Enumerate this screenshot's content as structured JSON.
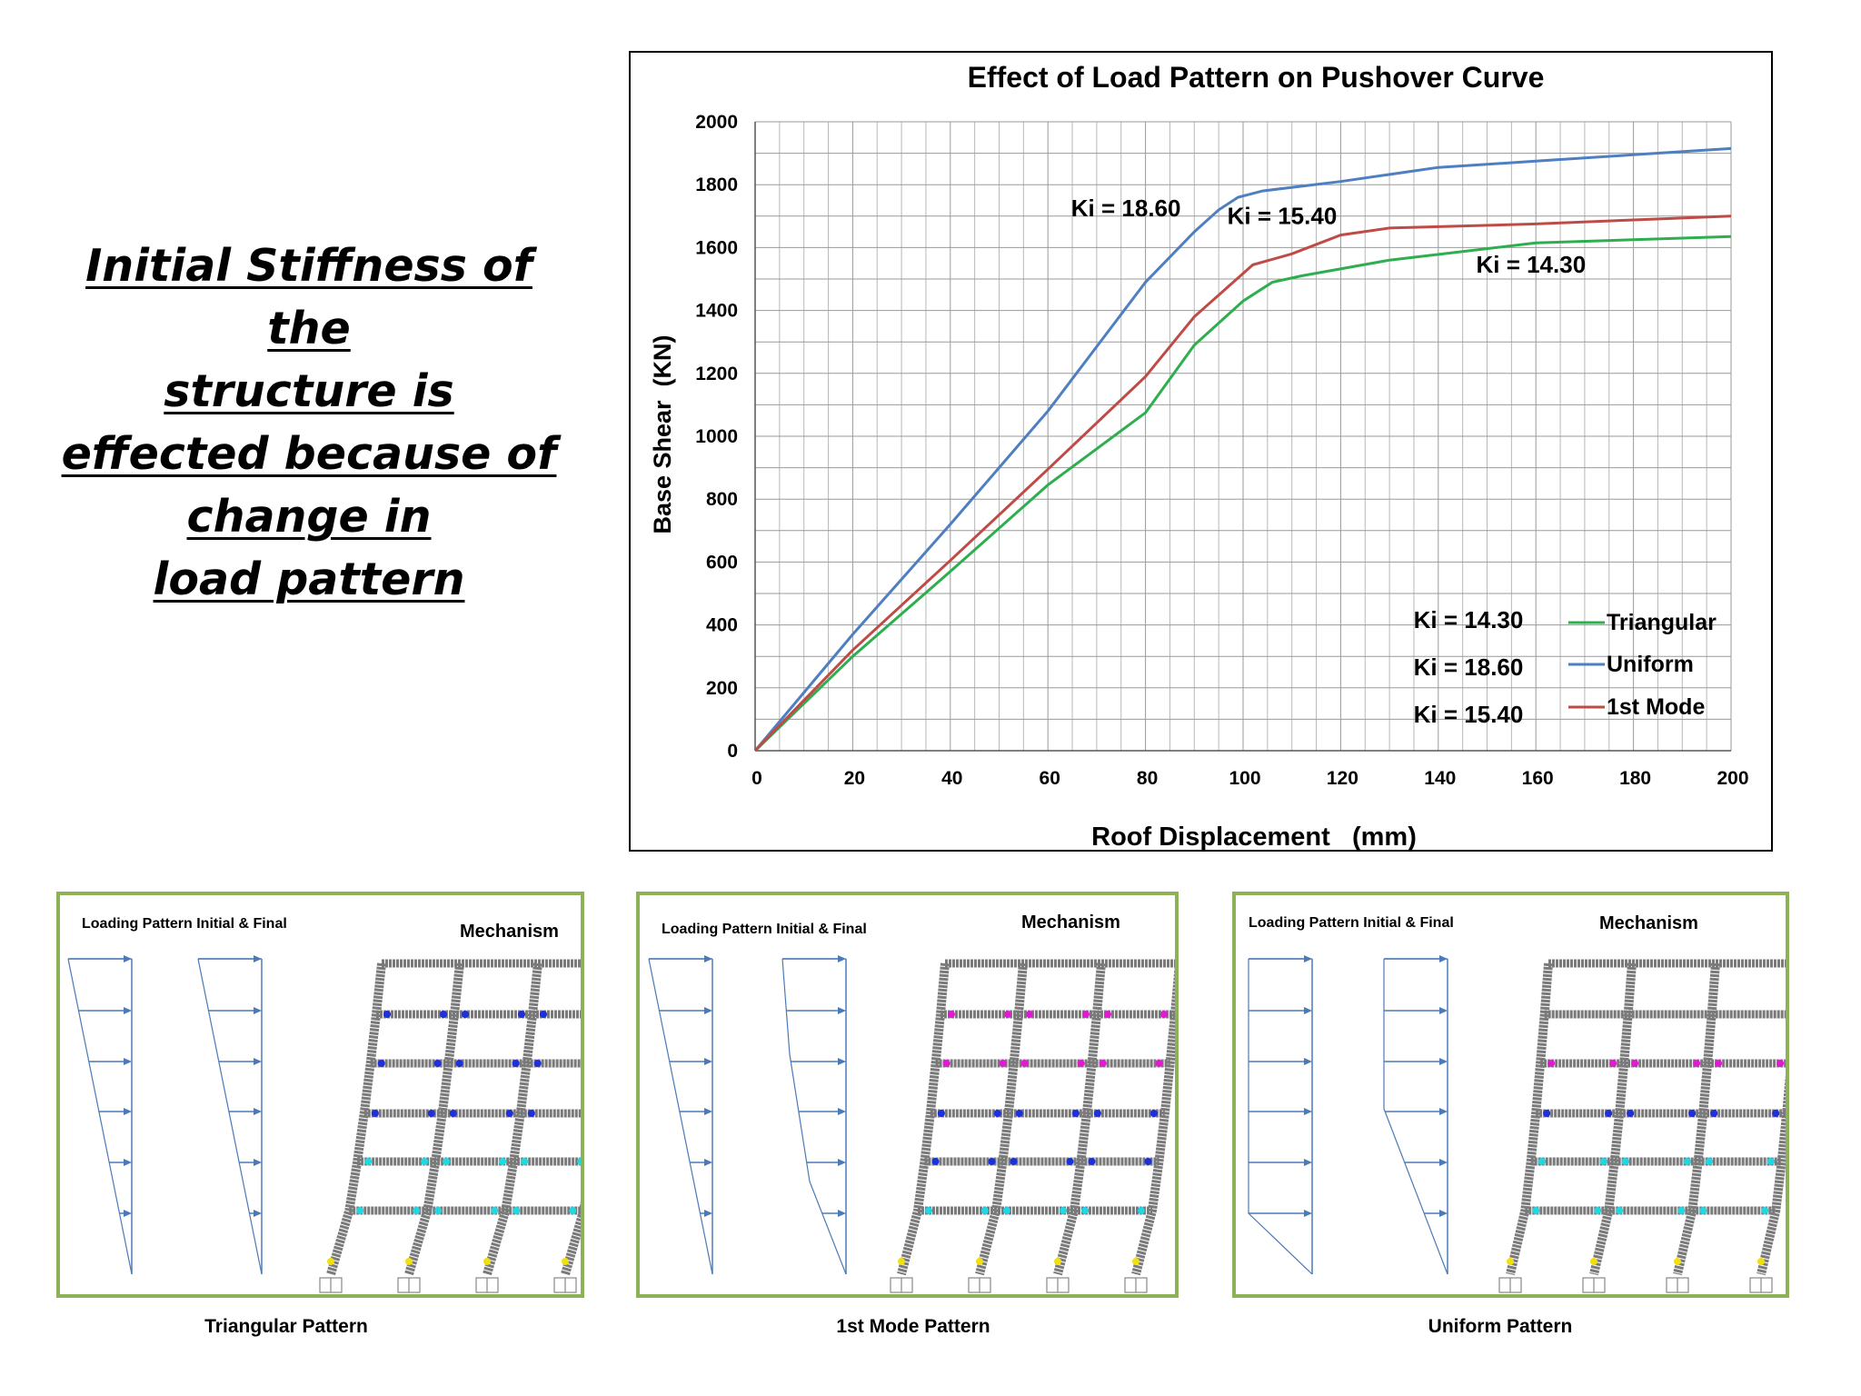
{
  "heading": {
    "lines": [
      "Initial Stiffness of the",
      "structure is",
      "effected because of",
      "change in",
      "load pattern"
    ]
  },
  "chart_data": {
    "type": "line",
    "title": "Effect of Load Pattern on Pushover Curve",
    "xlabel": "Roof Displacement   (mm)",
    "ylabel": "Base Shear  (KN)",
    "xlim": [
      0,
      200
    ],
    "ylim": [
      0,
      2000
    ],
    "xticks": [
      0,
      20,
      40,
      60,
      80,
      100,
      120,
      140,
      160,
      180,
      200
    ],
    "yticks": [
      0,
      200,
      400,
      600,
      800,
      1000,
      1200,
      1400,
      1600,
      1800,
      2000
    ],
    "grid": true,
    "legend": "bottom-right",
    "series": [
      {
        "name": "Triangular",
        "color": "#2eae4f",
        "points": [
          [
            0,
            0
          ],
          [
            10,
            150
          ],
          [
            20,
            300
          ],
          [
            40,
            570
          ],
          [
            60,
            845
          ],
          [
            80,
            1075
          ],
          [
            90,
            1290
          ],
          [
            100,
            1430
          ],
          [
            106,
            1490
          ],
          [
            112,
            1510
          ],
          [
            130,
            1560
          ],
          [
            160,
            1615
          ],
          [
            180,
            1625
          ],
          [
            200,
            1635
          ]
        ]
      },
      {
        "name": "Uniform",
        "color": "#4e7fc0",
        "points": [
          [
            0,
            0
          ],
          [
            10,
            185
          ],
          [
            20,
            370
          ],
          [
            40,
            720
          ],
          [
            60,
            1080
          ],
          [
            80,
            1490
          ],
          [
            90,
            1650
          ],
          [
            95,
            1720
          ],
          [
            99,
            1760
          ],
          [
            104,
            1780
          ],
          [
            120,
            1810
          ],
          [
            140,
            1855
          ],
          [
            160,
            1875
          ],
          [
            180,
            1895
          ],
          [
            200,
            1915
          ]
        ]
      },
      {
        "name": "1st Mode",
        "color": "#bf4b47",
        "points": [
          [
            0,
            0
          ],
          [
            10,
            160
          ],
          [
            20,
            320
          ],
          [
            40,
            605
          ],
          [
            60,
            895
          ],
          [
            80,
            1190
          ],
          [
            90,
            1380
          ],
          [
            102,
            1545
          ],
          [
            110,
            1580
          ],
          [
            120,
            1640
          ],
          [
            130,
            1662
          ],
          [
            160,
            1675
          ],
          [
            180,
            1688
          ],
          [
            200,
            1700
          ]
        ]
      }
    ],
    "annotations": [
      {
        "text": "Ki = 18.60",
        "x": 76,
        "y": 1700
      },
      {
        "text": "Ki = 15.40",
        "x": 108,
        "y": 1675
      },
      {
        "text": "Ki = 14.30",
        "x": 159,
        "y": 1520
      }
    ],
    "legend_ki": [
      "Ki = 14.30",
      "Ki = 18.60",
      "Ki = 15.40"
    ],
    "legend_labels": [
      "Triangular",
      "Uniform",
      "1st Mode"
    ]
  },
  "panels": [
    {
      "header_left": "Loading Pattern Initial & Final",
      "header_right": "Mechanism",
      "caption": "Triangular Pattern"
    },
    {
      "header_left": "Loading Pattern Initial & Final",
      "header_right": "Mechanism",
      "caption": "1st Mode Pattern"
    },
    {
      "header_left": "Loading Pattern Initial & Final",
      "header_right": "Mechanism",
      "caption": "Uniform Pattern"
    }
  ],
  "colors": {
    "panel_border": "#8db255",
    "arrow": "#4a7ab8",
    "member": "#7a7a7a",
    "hinge_magenta": "#e01ad2",
    "hinge_blue": "#1a32d8",
    "hinge_cyan": "#20d8e0",
    "hinge_yellow": "#f0e010"
  }
}
